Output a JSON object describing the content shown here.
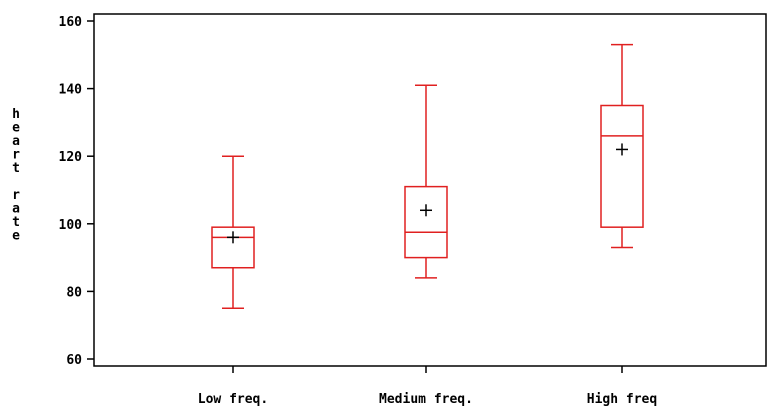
{
  "chart_data": {
    "type": "box",
    "title": "",
    "xlabel": "",
    "ylabel": "heart rate",
    "ylim": [
      60,
      160
    ],
    "yticks": [
      60,
      80,
      100,
      120,
      140,
      160
    ],
    "grid": false,
    "categories": [
      "Low freq.",
      "Medium freq.",
      "High freq"
    ],
    "boxes": [
      {
        "min": 75,
        "q1": 87,
        "median": 96,
        "q3": 99,
        "max": 120,
        "mean": 96
      },
      {
        "min": 84,
        "q1": 90,
        "median": 97.5,
        "q3": 111,
        "max": 141,
        "mean": 104
      },
      {
        "min": 93,
        "q1": 99,
        "median": 126,
        "q3": 135,
        "max": 153,
        "mean": 122
      }
    ],
    "colors": {
      "box": "#e02020",
      "mean_marker": "#000000",
      "axes": "#000000"
    }
  }
}
